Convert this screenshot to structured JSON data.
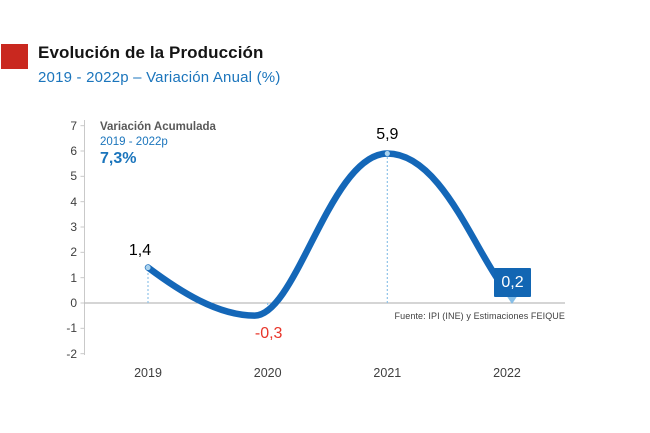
{
  "header": {
    "bullet_color": "#C9281F",
    "title": "Evolución de la Producción",
    "subtitle": "2019 - 2022p  –  Variación Anual (%)",
    "subtitle_color": "#1B75BC"
  },
  "chart_data": {
    "type": "line",
    "title": "Evolución de la Producción",
    "subtitle": "2019 - 2022p – Variación Anual (%)",
    "categories": [
      "2019",
      "2020",
      "2021",
      "2022"
    ],
    "values": [
      1.4,
      -0.3,
      5.9,
      0.2
    ],
    "value_labels": [
      "1,4",
      "-0,3",
      "5,9",
      "0,2"
    ],
    "ylim": [
      -2,
      7
    ],
    "yticks": [
      7,
      6,
      5,
      4,
      3,
      2,
      1,
      0,
      -1,
      -2
    ],
    "xlabel": "",
    "ylabel": "",
    "grid": false,
    "legend": "none",
    "line_color": "#1467B8",
    "leader_color": "#8FC3E9",
    "negative_label_color": "#E8352A",
    "callout_fill": "#1266B3",
    "annotation": {
      "label": "Variación Acumulada",
      "period": "2019 - 2022p",
      "value": "7,3%"
    },
    "source": "Fuente: IPI (INE) y Estimaciones FEIQUE"
  }
}
